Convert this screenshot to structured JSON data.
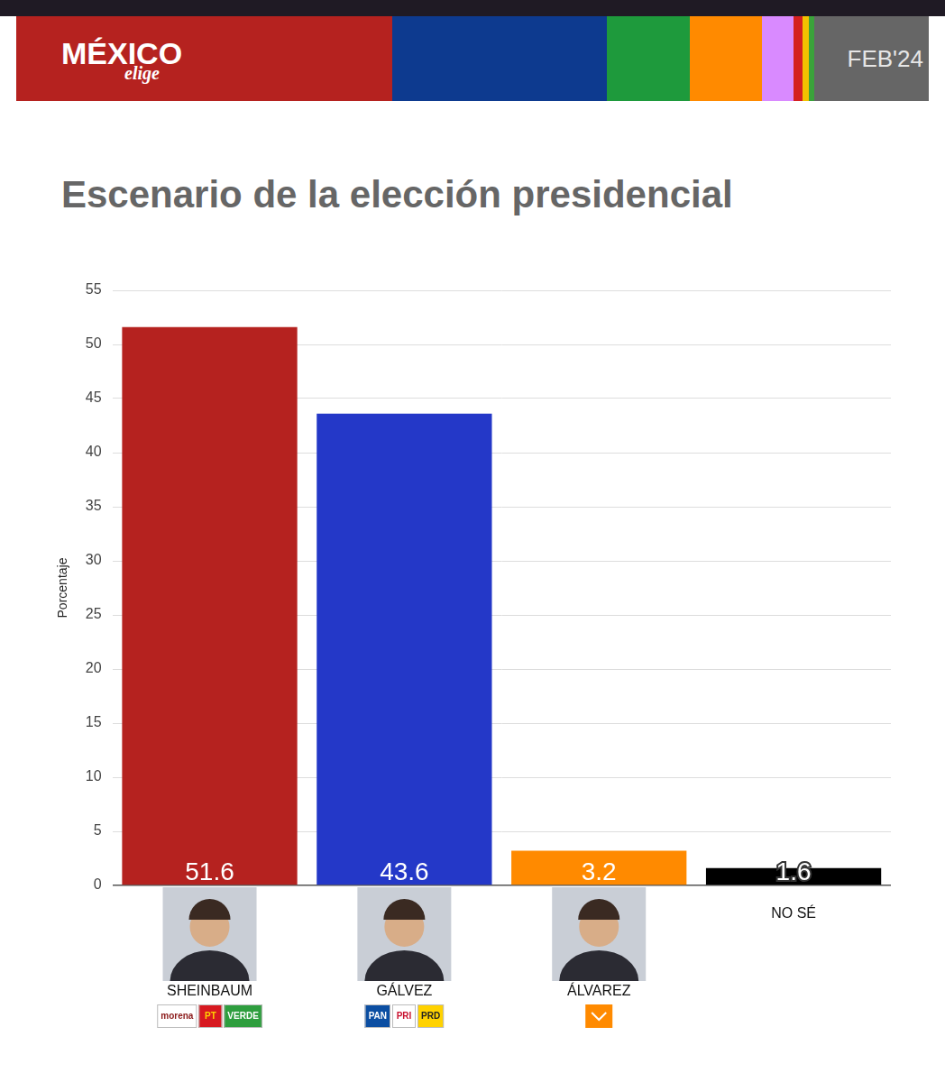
{
  "header": {
    "logo": "MÉXICO",
    "logo_sub": "elige",
    "date": "FEB'24"
  },
  "chart_data": {
    "type": "bar",
    "title": "Escenario de la elección presidencial",
    "y_label": "Porcentaje",
    "categories": [
      "SHEINBAUM",
      "GÁLVEZ",
      "ÁLVAREZ",
      "NO SÉ"
    ],
    "values": [
      51.6,
      43.6,
      3.2,
      1.6
    ],
    "colors": [
      "#b5221f",
      "#2438c8",
      "#ff8a00",
      "#000000"
    ],
    "ylim": [
      0,
      55
    ],
    "yticks": [
      0,
      5,
      10,
      15,
      20,
      25,
      30,
      35,
      40,
      45,
      50,
      55
    ],
    "grid": true,
    "data_labels": true
  },
  "party_logos": [
    [
      "morena",
      "PT",
      "VERDE"
    ],
    [
      "PAN",
      "PRI",
      "PRD"
    ],
    [],
    null
  ]
}
